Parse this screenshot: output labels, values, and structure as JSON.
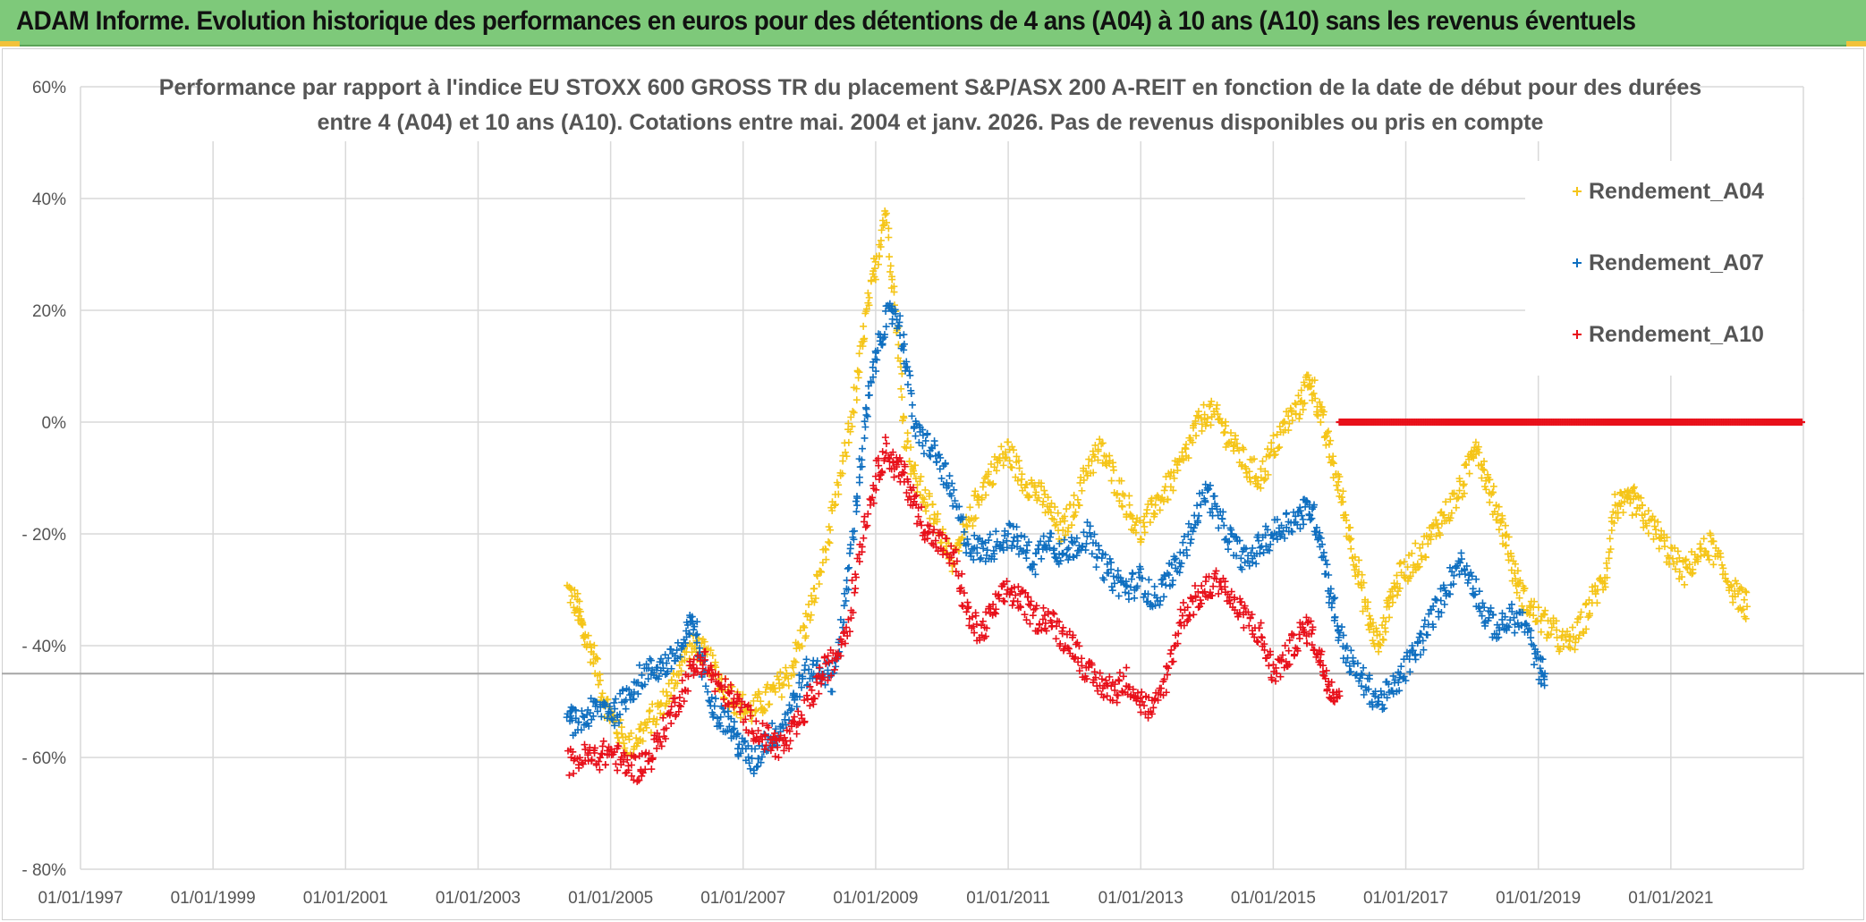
{
  "header": {
    "title": "ADAM Informe. Evolution historique des performances en euros pour des détentions de 4 ans (A04) à 10 ans (A10) sans les revenus éventuels"
  },
  "colors": {
    "banner": "#7ec97a",
    "a04": "#f5c518",
    "a07": "#0f6fc0",
    "a10": "#e8101a",
    "grid": "#d9d9d9",
    "refline": "#a6a6a6"
  },
  "chart_data": {
    "type": "scatter",
    "title_lines": [
      "Performance par rapport à l'indice EU STOXX 600 GROSS TR  du placement S&P/ASX 200 A-REIT en fonction de la date de début pour des durées",
      "entre 4 (A04) et 10 ans (A10). Cotations entre mai. 2004 et janv. 2026. Pas de revenus disponibles ou pris en compte"
    ],
    "x_tick_labels": [
      "01/01/1997",
      "01/01/1999",
      "01/01/2001",
      "01/01/2003",
      "01/01/2005",
      "01/01/2007",
      "01/01/2009",
      "01/01/2011",
      "01/01/2013",
      "01/01/2015",
      "01/01/2017",
      "01/01/2019",
      "01/01/2021"
    ],
    "x_range": [
      1997.0,
      2023.0
    ],
    "y_tick_labels": [
      "60%",
      "40%",
      "20%",
      "0%",
      "- 20%",
      "- 40%",
      "- 60%",
      "- 80%"
    ],
    "y_ticks": [
      60,
      40,
      20,
      0,
      -20,
      -40,
      -60,
      -80
    ],
    "ylim": [
      -80,
      60
    ],
    "reference_line_y": -45,
    "grid": true,
    "legend_position": "top-right",
    "marker": "+",
    "series": [
      {
        "name": "Rendement_A04",
        "color_key": "a04",
        "points": [
          [
            2004.35,
            -30
          ],
          [
            2004.5,
            -33
          ],
          [
            2004.6,
            -38
          ],
          [
            2004.75,
            -42
          ],
          [
            2004.9,
            -50
          ],
          [
            2005.1,
            -55
          ],
          [
            2005.3,
            -58
          ],
          [
            2005.5,
            -55
          ],
          [
            2005.7,
            -52
          ],
          [
            2005.9,
            -48
          ],
          [
            2006.1,
            -42
          ],
          [
            2006.3,
            -40
          ],
          [
            2006.5,
            -43
          ],
          [
            2006.7,
            -47
          ],
          [
            2006.9,
            -50
          ],
          [
            2007.1,
            -52
          ],
          [
            2007.3,
            -50
          ],
          [
            2007.5,
            -48
          ],
          [
            2007.7,
            -45
          ],
          [
            2007.9,
            -38
          ],
          [
            2008.1,
            -30
          ],
          [
            2008.3,
            -20
          ],
          [
            2008.5,
            -8
          ],
          [
            2008.7,
            5
          ],
          [
            2008.85,
            18
          ],
          [
            2009.0,
            28
          ],
          [
            2009.15,
            38
          ],
          [
            2009.3,
            20
          ],
          [
            2009.45,
            -2
          ],
          [
            2009.6,
            -10
          ],
          [
            2009.8,
            -15
          ],
          [
            2010.0,
            -20
          ],
          [
            2010.2,
            -25
          ],
          [
            2010.4,
            -18
          ],
          [
            2010.6,
            -12
          ],
          [
            2010.8,
            -8
          ],
          [
            2011.0,
            -5
          ],
          [
            2011.2,
            -10
          ],
          [
            2011.4,
            -12
          ],
          [
            2011.6,
            -15
          ],
          [
            2011.8,
            -20
          ],
          [
            2012.0,
            -15
          ],
          [
            2012.2,
            -8
          ],
          [
            2012.4,
            -5
          ],
          [
            2012.6,
            -10
          ],
          [
            2012.8,
            -15
          ],
          [
            2013.0,
            -20
          ],
          [
            2013.2,
            -15
          ],
          [
            2013.4,
            -12
          ],
          [
            2013.6,
            -8
          ],
          [
            2013.8,
            -2
          ],
          [
            2014.0,
            2
          ],
          [
            2014.2,
            0
          ],
          [
            2014.4,
            -4
          ],
          [
            2014.6,
            -8
          ],
          [
            2014.8,
            -10
          ],
          [
            2015.0,
            -5
          ],
          [
            2015.2,
            0
          ],
          [
            2015.4,
            3
          ],
          [
            2015.55,
            8
          ],
          [
            2015.7,
            2
          ],
          [
            2015.85,
            -5
          ],
          [
            2016.0,
            -12
          ],
          [
            2016.15,
            -20
          ],
          [
            2016.3,
            -28
          ],
          [
            2016.45,
            -36
          ],
          [
            2016.6,
            -40
          ],
          [
            2016.75,
            -32
          ],
          [
            2016.9,
            -28
          ],
          [
            2017.1,
            -25
          ],
          [
            2017.3,
            -22
          ],
          [
            2017.5,
            -18
          ],
          [
            2017.7,
            -15
          ],
          [
            2017.9,
            -10
          ],
          [
            2018.05,
            -3
          ],
          [
            2018.2,
            -10
          ],
          [
            2018.35,
            -15
          ],
          [
            2018.5,
            -20
          ],
          [
            2018.65,
            -28
          ],
          [
            2018.8,
            -32
          ],
          [
            2019.0,
            -35
          ],
          [
            2019.2,
            -37
          ],
          [
            2019.4,
            -40
          ],
          [
            2019.6,
            -38
          ],
          [
            2019.8,
            -32
          ],
          [
            2020.0,
            -28
          ],
          [
            2020.15,
            -15
          ],
          [
            2020.3,
            -15
          ],
          [
            2020.45,
            -14
          ],
          [
            2020.6,
            -17
          ],
          [
            2020.8,
            -20
          ],
          [
            2021.0,
            -24
          ],
          [
            2021.2,
            -27
          ],
          [
            2021.4,
            -24
          ],
          [
            2021.6,
            -22
          ],
          [
            2021.8,
            -27
          ],
          [
            2022.0,
            -31
          ],
          [
            2022.15,
            -33
          ]
        ]
      },
      {
        "name": "Rendement_A07",
        "color_key": "a07",
        "points": [
          [
            2004.35,
            -53
          ],
          [
            2004.5,
            -54
          ],
          [
            2004.7,
            -52
          ],
          [
            2004.9,
            -51
          ],
          [
            2005.1,
            -52
          ],
          [
            2005.3,
            -48
          ],
          [
            2005.5,
            -45
          ],
          [
            2005.7,
            -44
          ],
          [
            2005.9,
            -43
          ],
          [
            2006.1,
            -40
          ],
          [
            2006.25,
            -35
          ],
          [
            2006.4,
            -45
          ],
          [
            2006.6,
            -52
          ],
          [
            2006.8,
            -54
          ],
          [
            2006.95,
            -58
          ],
          [
            2007.15,
            -61
          ],
          [
            2007.35,
            -57
          ],
          [
            2007.55,
            -55
          ],
          [
            2007.75,
            -50
          ],
          [
            2007.95,
            -45
          ],
          [
            2008.15,
            -44
          ],
          [
            2008.35,
            -46
          ],
          [
            2008.55,
            -32
          ],
          [
            2008.7,
            -15
          ],
          [
            2008.85,
            0
          ],
          [
            2009.0,
            12
          ],
          [
            2009.15,
            18
          ],
          [
            2009.3,
            20
          ],
          [
            2009.45,
            12
          ],
          [
            2009.6,
            -2
          ],
          [
            2009.8,
            -4
          ],
          [
            2010.0,
            -8
          ],
          [
            2010.2,
            -15
          ],
          [
            2010.4,
            -22
          ],
          [
            2010.6,
            -23
          ],
          [
            2010.8,
            -22
          ],
          [
            2011.0,
            -20
          ],
          [
            2011.2,
            -22
          ],
          [
            2011.4,
            -25
          ],
          [
            2011.6,
            -20
          ],
          [
            2011.8,
            -24
          ],
          [
            2012.0,
            -22
          ],
          [
            2012.2,
            -20
          ],
          [
            2012.4,
            -25
          ],
          [
            2012.6,
            -28
          ],
          [
            2012.8,
            -30
          ],
          [
            2013.0,
            -28
          ],
          [
            2013.2,
            -32
          ],
          [
            2013.4,
            -28
          ],
          [
            2013.6,
            -25
          ],
          [
            2013.8,
            -18
          ],
          [
            2014.0,
            -12
          ],
          [
            2014.2,
            -18
          ],
          [
            2014.4,
            -22
          ],
          [
            2014.6,
            -25
          ],
          [
            2014.8,
            -22
          ],
          [
            2015.0,
            -20
          ],
          [
            2015.2,
            -18
          ],
          [
            2015.4,
            -17
          ],
          [
            2015.55,
            -15
          ],
          [
            2015.7,
            -20
          ],
          [
            2015.85,
            -30
          ],
          [
            2016.0,
            -38
          ],
          [
            2016.2,
            -44
          ],
          [
            2016.4,
            -47
          ],
          [
            2016.6,
            -50
          ],
          [
            2016.8,
            -48
          ],
          [
            2017.0,
            -44
          ],
          [
            2017.2,
            -40
          ],
          [
            2017.4,
            -35
          ],
          [
            2017.6,
            -30
          ],
          [
            2017.8,
            -25
          ],
          [
            2018.0,
            -28
          ],
          [
            2018.2,
            -35
          ],
          [
            2018.4,
            -37
          ],
          [
            2018.6,
            -35
          ],
          [
            2018.8,
            -36
          ],
          [
            2019.0,
            -44
          ],
          [
            2019.1,
            -45
          ]
        ]
      },
      {
        "name": "Rendement_A10",
        "color_key": "a10",
        "points": [
          [
            2004.35,
            -61
          ],
          [
            2004.6,
            -60
          ],
          [
            2004.8,
            -60
          ],
          [
            2005.0,
            -59
          ],
          [
            2005.2,
            -61
          ],
          [
            2005.4,
            -62
          ],
          [
            2005.6,
            -60
          ],
          [
            2005.8,
            -55
          ],
          [
            2006.0,
            -50
          ],
          [
            2006.2,
            -45
          ],
          [
            2006.4,
            -42
          ],
          [
            2006.6,
            -47
          ],
          [
            2006.8,
            -49
          ],
          [
            2007.0,
            -52
          ],
          [
            2007.2,
            -55
          ],
          [
            2007.4,
            -57
          ],
          [
            2007.6,
            -58
          ],
          [
            2007.8,
            -55
          ],
          [
            2008.0,
            -50
          ],
          [
            2008.2,
            -45
          ],
          [
            2008.4,
            -42
          ],
          [
            2008.6,
            -35
          ],
          [
            2008.8,
            -20
          ],
          [
            2009.0,
            -10
          ],
          [
            2009.15,
            -5
          ],
          [
            2009.3,
            -8
          ],
          [
            2009.45,
            -10
          ],
          [
            2009.6,
            -15
          ],
          [
            2009.8,
            -20
          ],
          [
            2010.0,
            -22
          ],
          [
            2010.2,
            -25
          ],
          [
            2010.4,
            -35
          ],
          [
            2010.6,
            -38
          ],
          [
            2010.8,
            -33
          ],
          [
            2011.0,
            -30
          ],
          [
            2011.2,
            -32
          ],
          [
            2011.4,
            -35
          ],
          [
            2011.6,
            -35
          ],
          [
            2011.8,
            -38
          ],
          [
            2012.0,
            -40
          ],
          [
            2012.2,
            -45
          ],
          [
            2012.4,
            -47
          ],
          [
            2012.6,
            -48
          ],
          [
            2012.8,
            -46
          ],
          [
            2013.0,
            -50
          ],
          [
            2013.2,
            -52
          ],
          [
            2013.4,
            -45
          ],
          [
            2013.6,
            -35
          ],
          [
            2013.8,
            -32
          ],
          [
            2014.0,
            -30
          ],
          [
            2014.2,
            -28
          ],
          [
            2014.4,
            -33
          ],
          [
            2014.6,
            -35
          ],
          [
            2014.8,
            -38
          ],
          [
            2015.0,
            -45
          ],
          [
            2015.2,
            -42
          ],
          [
            2015.4,
            -38
          ],
          [
            2015.55,
            -37
          ],
          [
            2015.7,
            -42
          ],
          [
            2015.85,
            -47
          ],
          [
            2016.0,
            -49
          ]
        ]
      },
      {
        "name": "Rendement_A10 (0%)",
        "color_key": "a10",
        "flat_segment": {
          "x_start": 2016.0,
          "x_end": 2023.0,
          "y": 0
        }
      }
    ],
    "legend": [
      {
        "label": "Rendement_A04",
        "color_key": "a04"
      },
      {
        "label": "Rendement_A07",
        "color_key": "a07"
      },
      {
        "label": "Rendement_A10",
        "color_key": "a10"
      }
    ]
  }
}
